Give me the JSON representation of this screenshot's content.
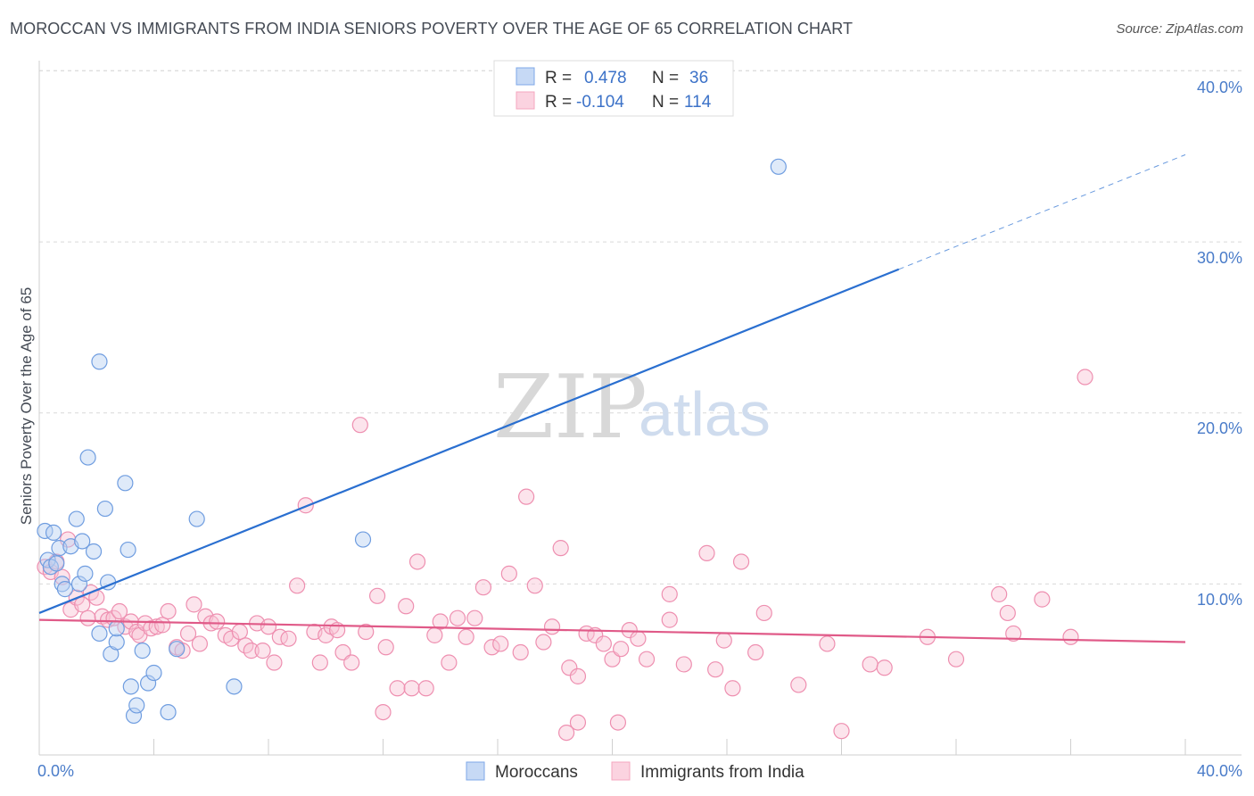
{
  "header": {
    "title": "MOROCCAN VS IMMIGRANTS FROM INDIA SENIORS POVERTY OVER THE AGE OF 65 CORRELATION CHART",
    "source": "Source: ZipAtlas.com"
  },
  "watermark": {
    "part1": "ZIP",
    "part2": "atlas"
  },
  "stats": [
    {
      "r_label": "R =",
      "r_value": "0.478",
      "n_label": "N =",
      "n_value": "36",
      "color": "#7fa8e8"
    },
    {
      "r_label": "R =",
      "r_value": "-0.104",
      "n_label": "N =",
      "n_value": "114",
      "color": "#f4a7bf"
    }
  ],
  "legend": {
    "series1": "Moroccans",
    "series2": "Immigrants from India"
  },
  "chart_data": {
    "type": "scatter",
    "title": "MOROCCAN VS IMMIGRANTS FROM INDIA SENIORS POVERTY OVER THE AGE OF 65 CORRELATION CHART",
    "xlabel": "",
    "ylabel": "Seniors Poverty Over the Age of 65",
    "xlim": [
      0,
      40
    ],
    "ylim": [
      0,
      40
    ],
    "x_tick_labels": [
      "0.0%",
      "40.0%"
    ],
    "y_tick_labels": [
      "10.0%",
      "20.0%",
      "30.0%",
      "40.0%"
    ],
    "y_ticks": [
      10,
      20,
      30,
      40
    ],
    "series": [
      {
        "name": "Moroccans",
        "color": "#7fa8e8",
        "line_color": "#2a6fd0",
        "trend": {
          "x0": 0,
          "y0": 8.3,
          "x1": 30,
          "y1": 28.4,
          "x_dash_end": 40,
          "y_dash_end": 35.1
        },
        "points": [
          [
            0.2,
            13.1
          ],
          [
            0.3,
            11.4
          ],
          [
            0.4,
            11.0
          ],
          [
            0.5,
            13.0
          ],
          [
            0.6,
            11.2
          ],
          [
            0.7,
            12.1
          ],
          [
            0.8,
            10.0
          ],
          [
            0.9,
            9.7
          ],
          [
            1.1,
            12.2
          ],
          [
            1.3,
            13.8
          ],
          [
            1.4,
            10.0
          ],
          [
            1.5,
            12.5
          ],
          [
            1.6,
            10.6
          ],
          [
            1.7,
            17.4
          ],
          [
            1.9,
            11.9
          ],
          [
            2.1,
            7.1
          ],
          [
            2.3,
            14.4
          ],
          [
            2.4,
            10.1
          ],
          [
            2.5,
            5.9
          ],
          [
            2.7,
            6.6
          ],
          [
            2.7,
            7.4
          ],
          [
            3.0,
            15.9
          ],
          [
            3.1,
            12.0
          ],
          [
            3.2,
            4.0
          ],
          [
            3.3,
            2.3
          ],
          [
            3.4,
            2.9
          ],
          [
            3.6,
            6.1
          ],
          [
            3.8,
            4.2
          ],
          [
            4.0,
            4.8
          ],
          [
            4.5,
            2.5
          ],
          [
            4.8,
            6.2
          ],
          [
            5.5,
            13.8
          ],
          [
            6.8,
            4.0
          ],
          [
            11.3,
            12.6
          ],
          [
            25.8,
            34.4
          ],
          [
            2.1,
            23.0
          ]
        ]
      },
      {
        "name": "Immigrants from India",
        "color": "#f4a7bf",
        "line_color": "#e05a88",
        "trend": {
          "x0": 0,
          "y0": 7.9,
          "x1": 40,
          "y1": 6.6
        },
        "points": [
          [
            0.2,
            11.0
          ],
          [
            0.4,
            10.7
          ],
          [
            0.6,
            11.3
          ],
          [
            0.8,
            10.4
          ],
          [
            1.0,
            12.6
          ],
          [
            1.1,
            8.5
          ],
          [
            1.3,
            9.2
          ],
          [
            1.5,
            8.8
          ],
          [
            1.7,
            8.0
          ],
          [
            1.8,
            9.5
          ],
          [
            2.0,
            9.2
          ],
          [
            2.2,
            8.1
          ],
          [
            2.4,
            7.9
          ],
          [
            2.6,
            8.0
          ],
          [
            2.8,
            8.4
          ],
          [
            3.0,
            7.5
          ],
          [
            3.2,
            7.8
          ],
          [
            3.4,
            7.2
          ],
          [
            3.5,
            7.0
          ],
          [
            3.7,
            7.7
          ],
          [
            3.9,
            7.4
          ],
          [
            4.1,
            7.5
          ],
          [
            4.3,
            7.6
          ],
          [
            4.5,
            8.4
          ],
          [
            4.8,
            6.3
          ],
          [
            5.0,
            6.1
          ],
          [
            5.2,
            7.1
          ],
          [
            5.4,
            8.8
          ],
          [
            5.6,
            6.5
          ],
          [
            5.8,
            8.1
          ],
          [
            6.0,
            7.7
          ],
          [
            6.2,
            7.8
          ],
          [
            6.5,
            7.0
          ],
          [
            6.7,
            6.8
          ],
          [
            7.0,
            7.2
          ],
          [
            7.2,
            6.4
          ],
          [
            7.4,
            6.1
          ],
          [
            7.6,
            7.7
          ],
          [
            7.8,
            6.1
          ],
          [
            8.0,
            7.5
          ],
          [
            8.2,
            5.4
          ],
          [
            8.4,
            6.9
          ],
          [
            8.7,
            6.8
          ],
          [
            9.0,
            9.9
          ],
          [
            9.3,
            14.6
          ],
          [
            9.6,
            7.2
          ],
          [
            9.8,
            5.4
          ],
          [
            10.0,
            7.0
          ],
          [
            10.2,
            7.5
          ],
          [
            10.4,
            7.3
          ],
          [
            10.6,
            6.0
          ],
          [
            10.9,
            5.4
          ],
          [
            11.2,
            19.3
          ],
          [
            11.4,
            7.2
          ],
          [
            11.8,
            9.3
          ],
          [
            12.1,
            6.3
          ],
          [
            12.5,
            3.9
          ],
          [
            12.8,
            8.7
          ],
          [
            13.0,
            3.9
          ],
          [
            13.2,
            11.3
          ],
          [
            13.5,
            3.9
          ],
          [
            13.8,
            7.0
          ],
          [
            14.0,
            7.8
          ],
          [
            14.3,
            5.4
          ],
          [
            14.6,
            8.0
          ],
          [
            14.9,
            6.9
          ],
          [
            15.2,
            8.0
          ],
          [
            15.5,
            9.8
          ],
          [
            15.8,
            6.3
          ],
          [
            16.1,
            6.5
          ],
          [
            16.4,
            10.6
          ],
          [
            16.8,
            6.0
          ],
          [
            17.0,
            15.1
          ],
          [
            17.3,
            9.9
          ],
          [
            17.6,
            6.6
          ],
          [
            17.9,
            7.5
          ],
          [
            18.2,
            12.1
          ],
          [
            18.5,
            5.1
          ],
          [
            18.8,
            4.6
          ],
          [
            19.1,
            7.1
          ],
          [
            19.4,
            7.0
          ],
          [
            19.7,
            6.5
          ],
          [
            20.0,
            5.6
          ],
          [
            20.3,
            6.2
          ],
          [
            20.6,
            7.3
          ],
          [
            20.9,
            6.8
          ],
          [
            21.2,
            5.6
          ],
          [
            22.0,
            9.4
          ],
          [
            22.0,
            7.9
          ],
          [
            22.5,
            5.3
          ],
          [
            23.3,
            11.8
          ],
          [
            23.6,
            5.0
          ],
          [
            23.9,
            6.7
          ],
          [
            24.2,
            3.9
          ],
          [
            24.5,
            11.3
          ],
          [
            25.0,
            6.0
          ],
          [
            25.3,
            8.3
          ],
          [
            26.5,
            4.1
          ],
          [
            27.5,
            6.5
          ],
          [
            28.0,
            1.4
          ],
          [
            29.0,
            5.3
          ],
          [
            29.5,
            5.1
          ],
          [
            31.0,
            6.9
          ],
          [
            32.0,
            5.6
          ],
          [
            33.5,
            9.4
          ],
          [
            33.8,
            8.3
          ],
          [
            34.0,
            7.1
          ],
          [
            35.0,
            9.1
          ],
          [
            36.0,
            6.9
          ],
          [
            36.5,
            22.1
          ],
          [
            18.4,
            1.3
          ],
          [
            18.8,
            1.9
          ],
          [
            20.2,
            1.9
          ],
          [
            12.0,
            2.5
          ]
        ]
      }
    ]
  }
}
